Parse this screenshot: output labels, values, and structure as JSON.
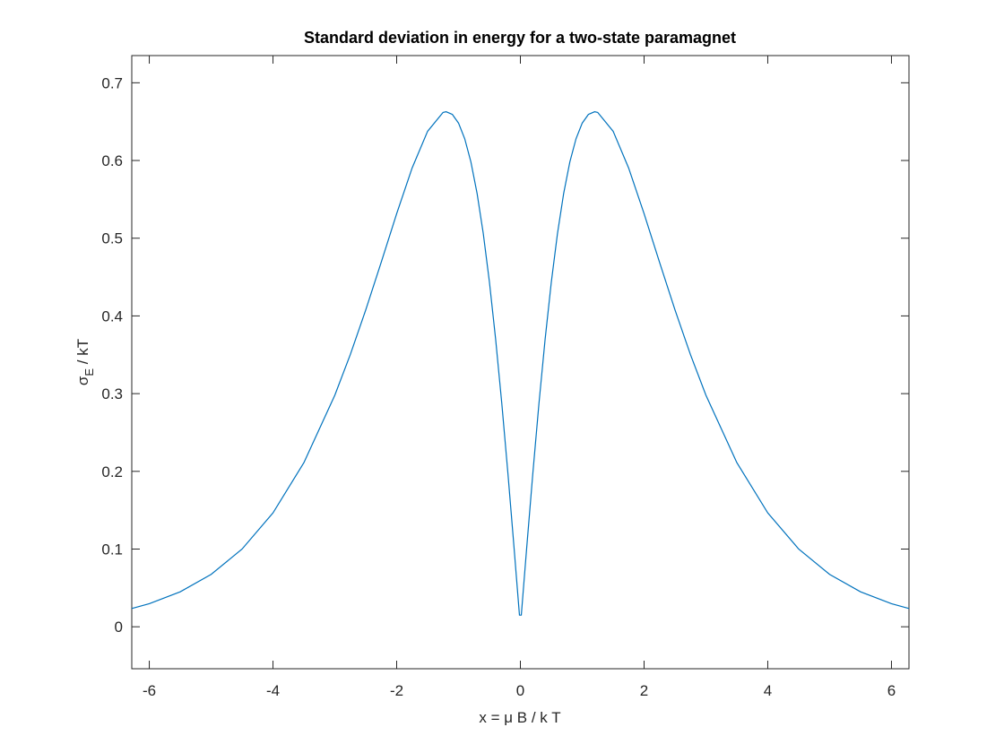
{
  "chart_data": {
    "type": "line",
    "title": "Standard deviation in energy for a two-state paramagnet",
    "xlabel": "x = μ B / k T",
    "ylabel": [
      "σ",
      "E",
      " / kT"
    ],
    "color": "#0072bd",
    "x": [
      -6.2832,
      -6,
      -5.5,
      -5,
      -4.5,
      -4,
      -3.5,
      -3,
      -2.75,
      -2.5,
      -2.25,
      -2,
      -1.75,
      -1.5,
      -1.25,
      -1.2,
      -1.1,
      -1,
      -0.9,
      -0.8,
      -0.7,
      -0.6,
      -0.5,
      -0.4,
      -0.3,
      -0.2,
      -0.1,
      -0.015,
      0.015,
      0.1,
      0.2,
      0.3,
      0.4,
      0.5,
      0.6,
      0.7,
      0.8,
      0.9,
      1,
      1.1,
      1.2,
      1.25,
      1.5,
      1.75,
      2,
      2.25,
      2.5,
      2.75,
      3,
      3.5,
      4,
      4.5,
      5,
      5.5,
      6,
      6.2832
    ],
    "values": [
      0.0235,
      0.0297,
      0.045,
      0.0674,
      0.1,
      0.1465,
      0.2112,
      0.298,
      0.3502,
      0.4077,
      0.469,
      0.5316,
      0.5904,
      0.6376,
      0.6619,
      0.6627,
      0.6593,
      0.6481,
      0.628,
      0.5982,
      0.5577,
      0.5061,
      0.4434,
      0.37,
      0.287,
      0.1961,
      0.0995,
      0.015,
      0.015,
      0.0995,
      0.1961,
      0.287,
      0.37,
      0.4434,
      0.5061,
      0.5577,
      0.5982,
      0.628,
      0.6481,
      0.6593,
      0.6627,
      0.6619,
      0.6376,
      0.5904,
      0.5316,
      0.469,
      0.4077,
      0.3502,
      0.298,
      0.2112,
      0.1465,
      0.1,
      0.0674,
      0.045,
      0.0297,
      0.0235
    ],
    "xlim": [
      -6.2832,
      6.2832
    ],
    "ylim": [
      -0.054,
      0.735
    ],
    "xticks": [
      -6,
      -4,
      -2,
      0,
      2,
      4,
      6
    ],
    "yticks": [
      0,
      0.1,
      0.2,
      0.3,
      0.4,
      0.5,
      0.6,
      0.7
    ],
    "grid": false
  }
}
